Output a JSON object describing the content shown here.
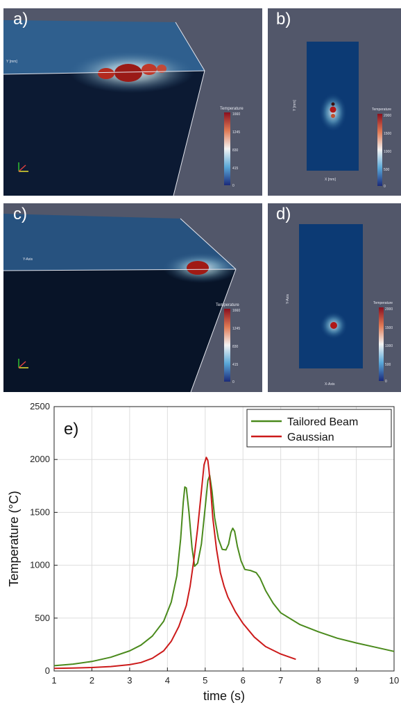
{
  "panels": {
    "a": {
      "label": "a)",
      "colorbar_title": "Temperature",
      "colorbar_ticks": [
        "1660",
        "1245",
        "830",
        "415",
        "0"
      ],
      "axis_label": "Y [mm]"
    },
    "b": {
      "label": "b)",
      "colorbar_title": "Temperature",
      "colorbar_ticks": [
        "2000",
        "1500",
        "1000",
        "500",
        "0"
      ],
      "xaxis_label": "X [mm]",
      "yaxis_label": "Y [mm]"
    },
    "c": {
      "label": "c)",
      "colorbar_title": "Temperature",
      "colorbar_ticks": [
        "1660",
        "1245",
        "830",
        "415",
        "0"
      ],
      "axis_label": "Y-Axis"
    },
    "d": {
      "label": "d)",
      "colorbar_title": "Temperature",
      "colorbar_ticks": [
        "2000",
        "1500",
        "1000",
        "500",
        "0"
      ],
      "xaxis_label": "X-Axis",
      "yaxis_label": "Y-Axis"
    }
  },
  "colors": {
    "panel_bg": "#52576a",
    "tailored": "#4a8a1c",
    "gaussian": "#cc1a1a"
  },
  "chart_data": {
    "type": "line",
    "panel_label": "e)",
    "xlabel": "time (s)",
    "ylabel": "Temperature (°C)",
    "xlim": [
      1,
      10
    ],
    "ylim": [
      0,
      2500
    ],
    "xticks": [
      1,
      2,
      3,
      4,
      5,
      6,
      7,
      8,
      9,
      10
    ],
    "yticks": [
      0,
      500,
      1000,
      1500,
      2000,
      2500
    ],
    "grid": true,
    "legend_position": "top-right",
    "series": [
      {
        "name": "Tailored Beam",
        "color": "#4a8a1c",
        "x": [
          1.0,
          1.5,
          2.0,
          2.5,
          3.0,
          3.3,
          3.6,
          3.9,
          4.1,
          4.25,
          4.35,
          4.42,
          4.46,
          4.5,
          4.57,
          4.65,
          4.72,
          4.8,
          4.9,
          5.0,
          5.07,
          5.12,
          5.18,
          5.25,
          5.35,
          5.45,
          5.55,
          5.62,
          5.68,
          5.73,
          5.78,
          5.85,
          5.95,
          6.05,
          6.2,
          6.35,
          6.45,
          6.6,
          6.8,
          7.0,
          7.5,
          8.0,
          8.5,
          9.0,
          9.5,
          10.0
        ],
        "y": [
          50,
          65,
          90,
          130,
          190,
          245,
          330,
          470,
          650,
          900,
          1250,
          1600,
          1740,
          1730,
          1500,
          1170,
          990,
          1020,
          1200,
          1550,
          1800,
          1850,
          1700,
          1450,
          1250,
          1150,
          1145,
          1200,
          1310,
          1350,
          1320,
          1180,
          1040,
          960,
          950,
          930,
          880,
          760,
          640,
          550,
          440,
          370,
          310,
          265,
          225,
          185
        ]
      },
      {
        "name": "Gaussian",
        "color": "#cc1a1a",
        "x": [
          1.0,
          1.5,
          2.0,
          2.5,
          3.0,
          3.3,
          3.6,
          3.9,
          4.1,
          4.3,
          4.5,
          4.6,
          4.7,
          4.8,
          4.9,
          4.97,
          5.03,
          5.07,
          5.1,
          5.15,
          5.2,
          5.3,
          5.4,
          5.5,
          5.6,
          5.8,
          6.0,
          6.3,
          6.6,
          7.0,
          7.4
        ],
        "y": [
          25,
          28,
          33,
          42,
          60,
          80,
          120,
          190,
          280,
          420,
          620,
          800,
          1050,
          1350,
          1700,
          1950,
          2020,
          1990,
          1900,
          1700,
          1450,
          1150,
          930,
          800,
          700,
          560,
          450,
          320,
          230,
          160,
          110
        ]
      }
    ]
  }
}
